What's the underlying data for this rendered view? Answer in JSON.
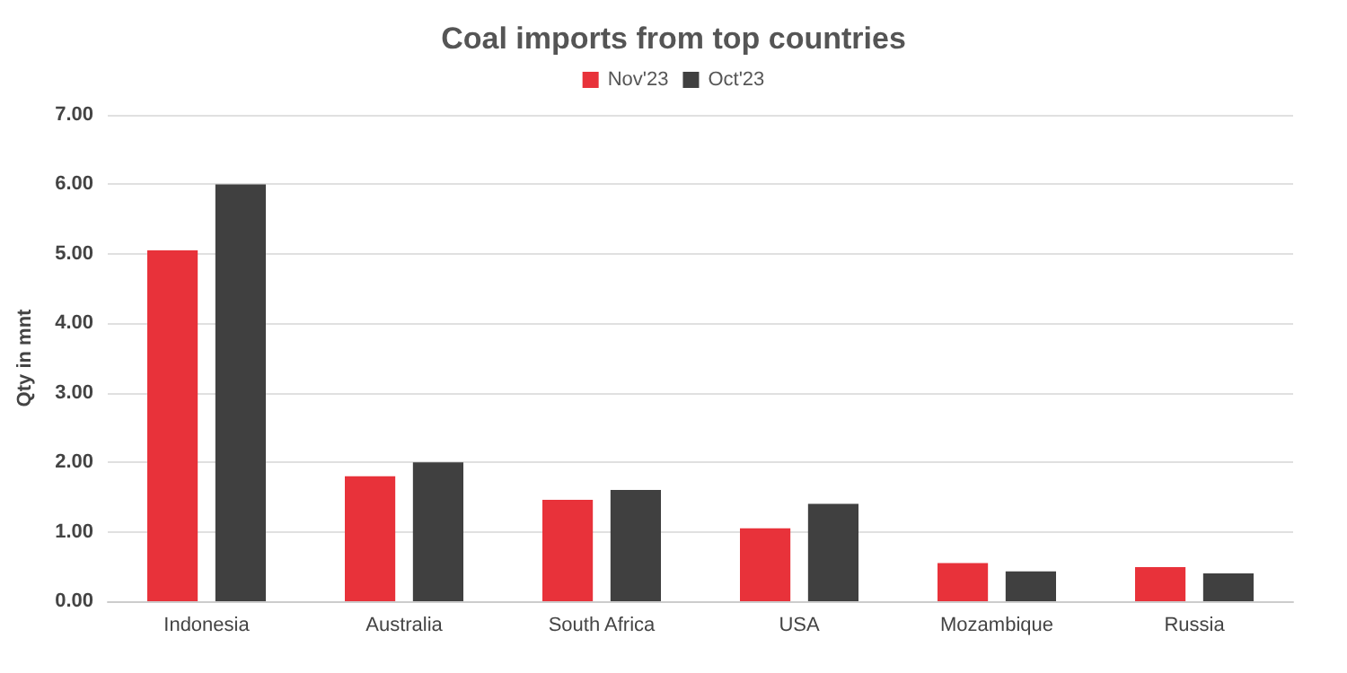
{
  "chart_data": {
    "type": "bar",
    "title": "Coal imports from top countries",
    "ylabel": "Qty in mnt",
    "categories": [
      "Indonesia",
      "Australia",
      "South Africa",
      "USA",
      "Mozambique",
      "Russia"
    ],
    "series": [
      {
        "name": "Nov'23",
        "color": "#e8323a",
        "values": [
          5.05,
          1.8,
          1.46,
          1.05,
          0.55,
          0.49
        ]
      },
      {
        "name": "Oct'23",
        "color": "#404040",
        "values": [
          6.0,
          2.0,
          1.6,
          1.4,
          0.43,
          0.4
        ]
      }
    ],
    "ylim": [
      0,
      7
    ],
    "yticks": [
      {
        "value": 0,
        "label": "0.00"
      },
      {
        "value": 1,
        "label": "1.00"
      },
      {
        "value": 2,
        "label": "2.00"
      },
      {
        "value": 3,
        "label": "3.00"
      },
      {
        "value": 4,
        "label": "4.00"
      },
      {
        "value": 5,
        "label": "5.00"
      },
      {
        "value": 6,
        "label": "6.00"
      },
      {
        "value": 7,
        "label": "7.00"
      }
    ],
    "grid": "y",
    "legend": "top"
  }
}
